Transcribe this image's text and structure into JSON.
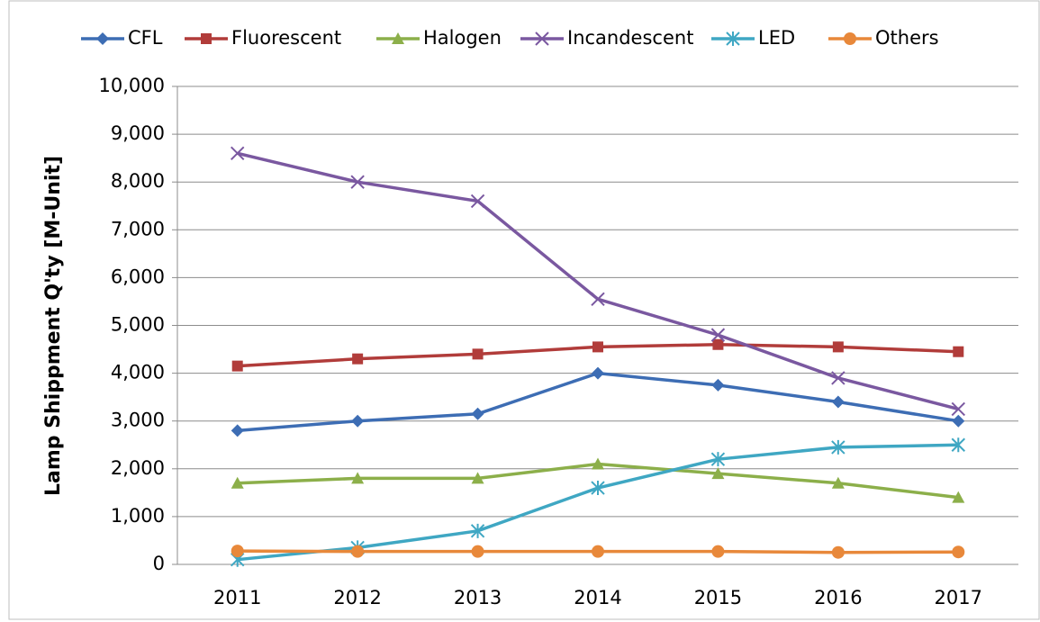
{
  "chart_data": {
    "type": "line",
    "y_label": "Lamp Shippment Q'ty [M-Unit]",
    "categories": [
      "2011",
      "2012",
      "2013",
      "2014",
      "2015",
      "2016",
      "2017"
    ],
    "series": [
      {
        "name": "CFL",
        "color": "#3d6db4",
        "marker": "diamond",
        "values": [
          2800,
          3000,
          3150,
          4000,
          3750,
          3400,
          3000
        ]
      },
      {
        "name": "Fluorescent",
        "color": "#b13c3a",
        "marker": "square",
        "values": [
          4150,
          4300,
          4400,
          4550,
          4600,
          4550,
          4450
        ]
      },
      {
        "name": "Halogen",
        "color": "#8caf4a",
        "marker": "triangle",
        "values": [
          1700,
          1800,
          1800,
          2100,
          1900,
          1700,
          1400
        ]
      },
      {
        "name": "Incandescent",
        "color": "#7a58a0",
        "marker": "x",
        "values": [
          8600,
          8000,
          7600,
          5550,
          4800,
          3900,
          3250
        ]
      },
      {
        "name": "LED",
        "color": "#3fa7c3",
        "marker": "star",
        "values": [
          100,
          350,
          700,
          1600,
          2200,
          2450,
          2500
        ]
      },
      {
        "name": "Others",
        "color": "#e8883a",
        "marker": "circle",
        "values": [
          280,
          270,
          270,
          270,
          270,
          250,
          260
        ]
      }
    ],
    "ylim": [
      0,
      10000
    ],
    "yticks": [
      0,
      {
        "value": 1000,
        "label": "1,000"
      },
      {
        "value": 2000,
        "label": "2,000"
      },
      {
        "value": 3000,
        "label": "3,000"
      },
      {
        "value": 4000,
        "label": "4,000"
      },
      {
        "value": 5000,
        "label": "5,000"
      },
      {
        "value": 6000,
        "label": "6,000"
      },
      {
        "value": 7000,
        "label": "7,000"
      },
      {
        "value": 8000,
        "label": "8,000"
      },
      {
        "value": 9000,
        "label": "9,000"
      },
      {
        "value": 10000,
        "label": "10,000"
      }
    ],
    "grid": true,
    "legend": "top"
  }
}
